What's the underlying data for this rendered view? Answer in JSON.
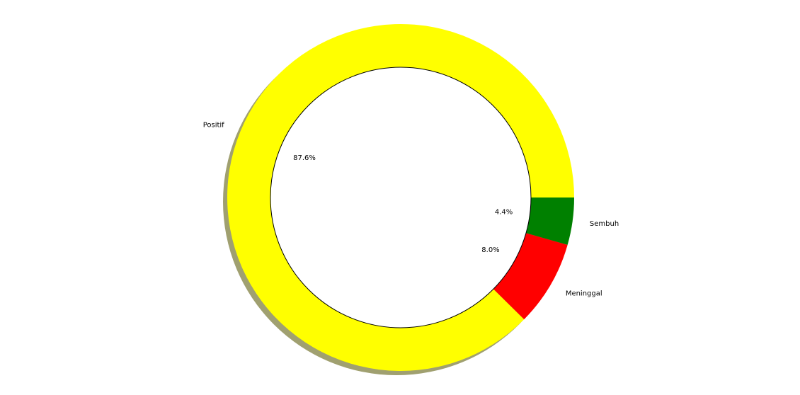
{
  "chart_data": {
    "type": "pie",
    "variant": "donut",
    "shadow": true,
    "start_angle_deg": 0,
    "direction": "counterclockwise",
    "slices": [
      {
        "label": "Positif",
        "value": 87.6,
        "pct_label": "87.6%",
        "color": "#ffff00"
      },
      {
        "label": "Meninggal",
        "value": 8.0,
        "pct_label": "8.0%",
        "color": "#ff0000"
      },
      {
        "label": "Sembuh",
        "value": 4.4,
        "pct_label": "4.4%",
        "color": "#008000"
      }
    ],
    "center_hole_color": "#ffffff",
    "center_hole_edge": "#000000",
    "shadow_color": "#a0a070"
  }
}
